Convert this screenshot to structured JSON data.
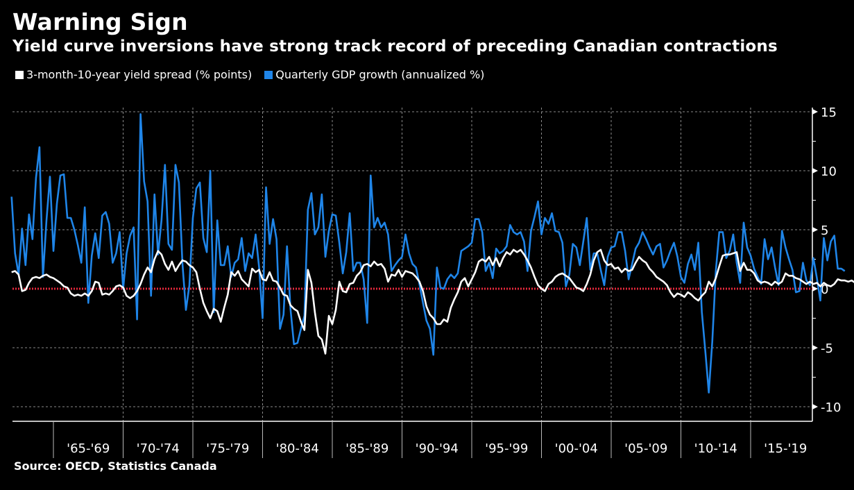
{
  "header": {
    "title": "Warning Sign",
    "subtitle": "Yield curve inversions have strong track record of preceding Canadian contractions"
  },
  "legend": [
    {
      "label": "3-month-10-year yield spread (% points)",
      "color": "#ffffff"
    },
    {
      "label": "Quarterly GDP growth (annualized %)",
      "color": "#1f85e8"
    }
  ],
  "footer": {
    "source": "Source: OECD, Statistics Canada"
  },
  "colors": {
    "background": "#000000",
    "zero_line": "#e8283c",
    "grid": "#8a8a8a",
    "axis": "#ffffff"
  },
  "chart_data": {
    "type": "line",
    "title": "Warning Sign",
    "subtitle": "Yield curve inversions have strong track record of preceding Canadian contractions",
    "xlabel": "",
    "ylabel": "",
    "x_range": [
      1962.0,
      2019.6
    ],
    "ylim": [
      -11.2,
      15.4
    ],
    "y_ticks": [
      -10,
      -5,
      0,
      5,
      10,
      15
    ],
    "y_axis_side": "right",
    "x_tick_labels": [
      "'65-'69",
      "'70-'74",
      "'75-'79",
      "'80-'84",
      "'85-'89",
      "'90-'94",
      "'95-'99",
      "'00-'04",
      "'05-'09",
      "'10-'14",
      "'15-'19"
    ],
    "x_tick_starts": [
      1965,
      1970,
      1975,
      1980,
      1985,
      1990,
      1995,
      2000,
      2005,
      2010,
      2015
    ],
    "grid": true,
    "reference_line": {
      "y": 0,
      "style": "dotted",
      "color": "#e8283c"
    },
    "legend_position": "top-left",
    "series": [
      {
        "name": "Quarterly GDP growth (annualized %)",
        "color": "#1f85e8",
        "x_start": 1962.0,
        "x_step": 0.25,
        "values": [
          7.8,
          3.0,
          1.2,
          5.1,
          2.0,
          6.3,
          4.2,
          9.4,
          12.0,
          1.0,
          5.8,
          9.5,
          3.2,
          7.2,
          9.6,
          9.7,
          6.0,
          6.0,
          5.0,
          3.7,
          2.2,
          6.9,
          -1.2,
          2.8,
          4.7,
          2.6,
          6.2,
          6.5,
          5.5,
          2.2,
          3.0,
          4.8,
          0.0,
          3.0,
          4.5,
          5.2,
          -2.6,
          14.8,
          9.1,
          7.4,
          -0.6,
          8.0,
          2.9,
          5.8,
          10.5,
          3.8,
          3.3,
          10.5,
          9.0,
          2.2,
          -1.8,
          0.3,
          6.0,
          8.5,
          9.0,
          4.3,
          3.1,
          10.0,
          -2.0,
          5.8,
          2.0,
          2.0,
          3.6,
          1.0,
          2.2,
          2.5,
          4.3,
          1.5,
          3.0,
          2.6,
          4.6,
          1.8,
          -2.5,
          8.6,
          3.8,
          5.9,
          4.2,
          -3.4,
          -2.2,
          3.6,
          -1.7,
          -4.7,
          -4.6,
          -3.4,
          -2.3,
          6.7,
          8.1,
          4.6,
          5.2,
          8.0,
          2.7,
          4.9,
          6.3,
          6.2,
          3.9,
          1.3,
          3.1,
          6.4,
          1.5,
          2.2,
          2.2,
          0.8,
          -2.9,
          9.6,
          5.2,
          6.0,
          5.2,
          5.6,
          4.6,
          1.5,
          2.0,
          2.4,
          2.7,
          4.6,
          3.0,
          2.1,
          1.8,
          0.4,
          -1.2,
          -2.7,
          -3.4,
          -5.6,
          1.8,
          0.1,
          0.0,
          0.8,
          1.2,
          0.9,
          1.3,
          3.2,
          3.4,
          3.6,
          3.9,
          5.9,
          5.9,
          4.8,
          1.5,
          2.2,
          0.9,
          3.4,
          3.0,
          3.2,
          3.6,
          5.4,
          4.8,
          4.6,
          4.8,
          4.0,
          1.5,
          4.9,
          6.1,
          7.4,
          4.6,
          6.0,
          5.5,
          6.4,
          4.9,
          4.8,
          3.9,
          0.2,
          1.2,
          3.8,
          3.5,
          2.0,
          4.0,
          6.0,
          1.6,
          3.0,
          3.0,
          1.6,
          0.3,
          2.7,
          3.5,
          3.6,
          4.8,
          4.8,
          3.2,
          0.8,
          2.1,
          3.4,
          3.9,
          4.8,
          4.2,
          3.5,
          2.9,
          3.6,
          3.8,
          1.8,
          2.4,
          3.2,
          3.9,
          2.7,
          1.0,
          0.5,
          2.1,
          2.9,
          1.6,
          3.9,
          -2.0,
          -5.3,
          -8.8,
          -4.5,
          1.5,
          4.8,
          4.8,
          2.6,
          3.2,
          4.6,
          2.2,
          0.5,
          5.6,
          3.5,
          2.8,
          1.7,
          1.0,
          0.4,
          4.2,
          2.5,
          3.5,
          1.8,
          0.3,
          4.9,
          3.5,
          2.5,
          1.6,
          -0.3,
          -0.2,
          2.2,
          0.7,
          0.3,
          2.6,
          0.9,
          -1.0,
          4.3,
          2.4,
          4.0,
          4.5,
          1.7,
          1.7,
          1.5
        ]
      },
      {
        "name": "3-month-10-year yield spread (% points)",
        "color": "#ffffff",
        "x_start": 1962.0,
        "x_step": 0.25,
        "values": [
          1.4,
          1.5,
          1.2,
          -0.2,
          -0.1,
          0.5,
          0.9,
          1.0,
          0.9,
          1.1,
          1.2,
          1.0,
          0.9,
          0.7,
          0.5,
          0.2,
          0.1,
          -0.4,
          -0.6,
          -0.5,
          -0.6,
          -0.4,
          -0.6,
          -0.2,
          0.6,
          0.5,
          -0.5,
          -0.4,
          -0.5,
          -0.2,
          0.2,
          0.3,
          0.1,
          -0.6,
          -0.8,
          -0.6,
          -0.2,
          0.4,
          1.2,
          1.8,
          1.4,
          2.5,
          3.2,
          2.9,
          2.1,
          1.6,
          2.3,
          1.5,
          2.0,
          2.4,
          2.3,
          2.0,
          1.8,
          1.4,
          0.0,
          -1.2,
          -1.9,
          -2.5,
          -1.7,
          -1.9,
          -2.8,
          -1.6,
          -0.5,
          1.4,
          1.1,
          1.5,
          0.8,
          0.5,
          0.2,
          1.7,
          1.4,
          1.6,
          0.8,
          0.7,
          1.4,
          0.7,
          0.6,
          0.1,
          -0.5,
          -0.6,
          -1.4,
          -1.7,
          -1.9,
          -2.8,
          -3.5,
          1.6,
          0.5,
          -2.0,
          -4.0,
          -4.3,
          -5.5,
          -2.3,
          -3.0,
          -1.8,
          0.6,
          -0.2,
          -0.3,
          0.4,
          0.5,
          1.1,
          1.4,
          2.0,
          2.1,
          1.9,
          2.3,
          2.0,
          2.1,
          1.7,
          0.6,
          1.2,
          1.1,
          1.6,
          1.0,
          1.5,
          1.4,
          1.3,
          1.0,
          0.6,
          -0.2,
          -1.5,
          -2.2,
          -2.5,
          -3.0,
          -3.0,
          -2.6,
          -2.8,
          -1.6,
          -0.9,
          -0.3,
          0.6,
          0.9,
          0.2,
          0.8,
          1.4,
          2.3,
          2.5,
          2.3,
          2.7,
          2.0,
          2.6,
          1.9,
          2.6,
          3.1,
          2.9,
          3.3,
          3.1,
          3.3,
          2.9,
          2.4,
          1.8,
          1.0,
          0.3,
          0.0,
          -0.2,
          0.4,
          0.6,
          1.0,
          1.2,
          1.3,
          1.1,
          0.9,
          0.5,
          0.1,
          0.0,
          -0.2,
          0.4,
          1.2,
          2.4,
          3.1,
          3.3,
          2.4,
          2.0,
          2.1,
          1.7,
          1.8,
          1.4,
          1.7,
          1.5,
          1.6,
          2.2,
          2.7,
          2.4,
          2.2,
          1.7,
          1.4,
          1.0,
          0.8,
          0.6,
          0.3,
          -0.3,
          -0.7,
          -0.4,
          -0.5,
          -0.7,
          -0.3,
          -0.5,
          -0.8,
          -1.0,
          -0.6,
          -0.3,
          0.6,
          0.2,
          0.9,
          1.9,
          2.8,
          2.9,
          2.9,
          3.0,
          3.1,
          1.5,
          2.2,
          1.6,
          1.6,
          1.3,
          0.7,
          0.5,
          0.6,
          0.5,
          0.3,
          0.6,
          0.4,
          0.6,
          1.3,
          1.1,
          1.1,
          0.9,
          0.8,
          0.6,
          0.4,
          0.6,
          0.4,
          0.5,
          0.2,
          0.5,
          0.3,
          0.2,
          0.4,
          0.8,
          0.7,
          0.7,
          0.6,
          0.7,
          0.5,
          0.7
        ]
      }
    ]
  }
}
